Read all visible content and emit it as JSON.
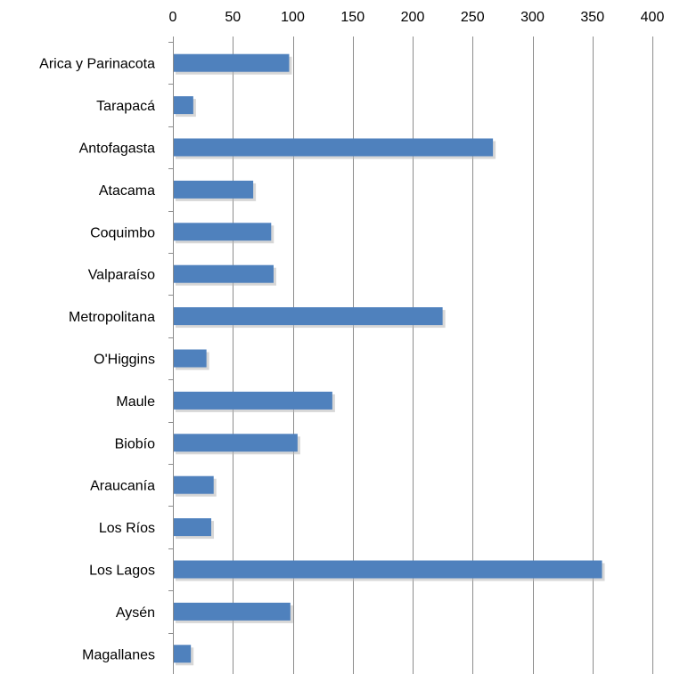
{
  "chart_data": {
    "type": "bar",
    "orientation": "horizontal",
    "title": "",
    "xlabel": "",
    "ylabel": "",
    "xlim": [
      0,
      400
    ],
    "x_ticks": [
      0,
      50,
      100,
      150,
      200,
      250,
      300,
      350,
      400
    ],
    "x_axis_position": "top",
    "grid": true,
    "legend": "none",
    "bar_color": "#4F81BD",
    "categories": [
      "Arica y Parinacota",
      "Tarapacá",
      "Antofagasta",
      "Atacama",
      "Coquimbo",
      "Valparaíso",
      "Metropolitana",
      "O'Higgins",
      "Maule",
      "Biobío",
      "Araucanía",
      "Los Ríos",
      "Los Lagos",
      "Aysén",
      "Magallanes"
    ],
    "values": [
      97,
      17,
      267,
      67,
      82,
      84,
      225,
      28,
      133,
      104,
      34,
      32,
      358,
      98,
      15
    ]
  }
}
